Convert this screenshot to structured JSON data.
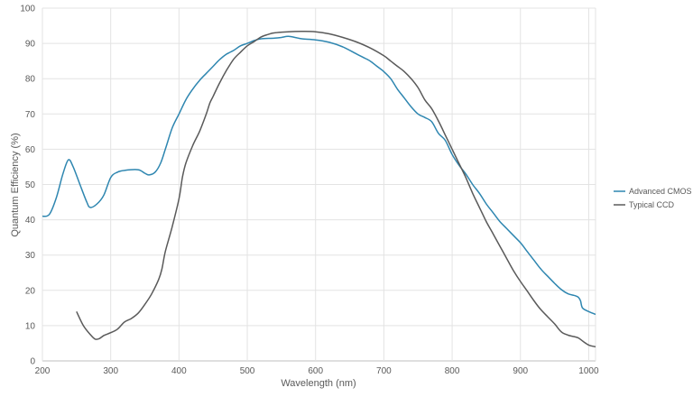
{
  "chart_data": {
    "type": "line",
    "title": "",
    "xlabel": "Wavelength (nm)",
    "ylabel": "Quantum Efficiency (%)",
    "xlim": [
      200,
      1010
    ],
    "ylim": [
      0,
      100
    ],
    "x_ticks": [
      200,
      300,
      400,
      500,
      600,
      700,
      800,
      900,
      1000
    ],
    "y_ticks": [
      0,
      10,
      20,
      30,
      40,
      50,
      60,
      70,
      80,
      90,
      100
    ],
    "grid": true,
    "legend_position": "right",
    "series": [
      {
        "name": "Advanced CMOS",
        "color": "#2e86b0",
        "points": [
          [
            200,
            41
          ],
          [
            210,
            41.5
          ],
          [
            220,
            46
          ],
          [
            230,
            53
          ],
          [
            238,
            57
          ],
          [
            245,
            55
          ],
          [
            255,
            50
          ],
          [
            265,
            45
          ],
          [
            270,
            43.5
          ],
          [
            280,
            44.5
          ],
          [
            290,
            47
          ],
          [
            300,
            52
          ],
          [
            310,
            53.5
          ],
          [
            320,
            54
          ],
          [
            340,
            54.2
          ],
          [
            350,
            53.2
          ],
          [
            356,
            52.7
          ],
          [
            365,
            53.5
          ],
          [
            373,
            56
          ],
          [
            380,
            60
          ],
          [
            390,
            66
          ],
          [
            400,
            70
          ],
          [
            410,
            74
          ],
          [
            420,
            77
          ],
          [
            430,
            79.5
          ],
          [
            440,
            81.5
          ],
          [
            450,
            83.5
          ],
          [
            460,
            85.5
          ],
          [
            470,
            87
          ],
          [
            480,
            88
          ],
          [
            490,
            89.3
          ],
          [
            500,
            90
          ],
          [
            510,
            90.8
          ],
          [
            520,
            91.3
          ],
          [
            540,
            91.5
          ],
          [
            550,
            91.7
          ],
          [
            560,
            92
          ],
          [
            570,
            91.7
          ],
          [
            580,
            91.3
          ],
          [
            600,
            91
          ],
          [
            620,
            90.3
          ],
          [
            640,
            89
          ],
          [
            660,
            87
          ],
          [
            670,
            86
          ],
          [
            680,
            85
          ],
          [
            690,
            83.5
          ],
          [
            700,
            82
          ],
          [
            710,
            80
          ],
          [
            720,
            77
          ],
          [
            730,
            74.5
          ],
          [
            740,
            72
          ],
          [
            750,
            70
          ],
          [
            760,
            69
          ],
          [
            770,
            67.8
          ],
          [
            780,
            64.5
          ],
          [
            790,
            62.5
          ],
          [
            800,
            58.5
          ],
          [
            810,
            55.5
          ],
          [
            820,
            53
          ],
          [
            830,
            50
          ],
          [
            840,
            47.5
          ],
          [
            850,
            44.5
          ],
          [
            860,
            42
          ],
          [
            870,
            39.5
          ],
          [
            880,
            37.5
          ],
          [
            890,
            35.5
          ],
          [
            900,
            33.5
          ],
          [
            910,
            31
          ],
          [
            920,
            28.5
          ],
          [
            930,
            26
          ],
          [
            940,
            24
          ],
          [
            950,
            22
          ],
          [
            960,
            20.2
          ],
          [
            970,
            19
          ],
          [
            980,
            18.5
          ],
          [
            985,
            18
          ],
          [
            988,
            17
          ],
          [
            991,
            15
          ],
          [
            1000,
            14
          ],
          [
            1010,
            13.2
          ]
        ]
      },
      {
        "name": "Typical CCD",
        "color": "#5a5a5a",
        "points": [
          [
            250,
            14
          ],
          [
            260,
            10
          ],
          [
            270,
            7.5
          ],
          [
            277,
            6.2
          ],
          [
            283,
            6.3
          ],
          [
            290,
            7.2
          ],
          [
            300,
            8
          ],
          [
            310,
            9
          ],
          [
            320,
            11
          ],
          [
            330,
            12
          ],
          [
            340,
            13.5
          ],
          [
            350,
            16
          ],
          [
            360,
            19
          ],
          [
            370,
            23
          ],
          [
            375,
            26
          ],
          [
            380,
            31
          ],
          [
            390,
            38
          ],
          [
            400,
            46
          ],
          [
            405,
            52
          ],
          [
            410,
            56
          ],
          [
            420,
            61
          ],
          [
            430,
            65
          ],
          [
            440,
            70
          ],
          [
            445,
            73
          ],
          [
            450,
            75
          ],
          [
            460,
            79
          ],
          [
            470,
            82.5
          ],
          [
            480,
            85.5
          ],
          [
            490,
            87.5
          ],
          [
            500,
            89.3
          ],
          [
            510,
            90.5
          ],
          [
            520,
            91.8
          ],
          [
            530,
            92.5
          ],
          [
            540,
            93
          ],
          [
            560,
            93.3
          ],
          [
            580,
            93.4
          ],
          [
            600,
            93.3
          ],
          [
            620,
            92.7
          ],
          [
            640,
            91.7
          ],
          [
            660,
            90.4
          ],
          [
            680,
            88.7
          ],
          [
            700,
            86.5
          ],
          [
            710,
            85
          ],
          [
            720,
            83.5
          ],
          [
            730,
            82
          ],
          [
            740,
            80
          ],
          [
            750,
            77.5
          ],
          [
            760,
            74
          ],
          [
            770,
            71.5
          ],
          [
            780,
            68
          ],
          [
            790,
            64
          ],
          [
            800,
            60
          ],
          [
            810,
            56
          ],
          [
            820,
            52
          ],
          [
            830,
            47.5
          ],
          [
            840,
            43.5
          ],
          [
            850,
            39.5
          ],
          [
            860,
            36
          ],
          [
            870,
            32.5
          ],
          [
            880,
            29
          ],
          [
            890,
            25.5
          ],
          [
            900,
            22.5
          ],
          [
            910,
            19.8
          ],
          [
            920,
            17
          ],
          [
            930,
            14.5
          ],
          [
            940,
            12.5
          ],
          [
            950,
            10.5
          ],
          [
            960,
            8.2
          ],
          [
            970,
            7.3
          ],
          [
            980,
            6.8
          ],
          [
            985,
            6.5
          ],
          [
            992,
            5.5
          ],
          [
            1000,
            4.5
          ],
          [
            1010,
            4
          ]
        ]
      }
    ]
  }
}
